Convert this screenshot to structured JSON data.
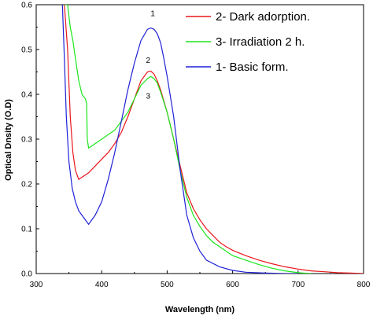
{
  "chart_data": {
    "type": "line",
    "xlabel": "Wavelength (nm)",
    "ylabel": "Optical Dnsity (O.D)",
    "xlim": [
      300,
      800
    ],
    "ylim": [
      0.0,
      0.6
    ],
    "xticks": [
      300,
      400,
      500,
      600,
      700,
      800
    ],
    "yticks": [
      0.0,
      0.1,
      0.2,
      0.3,
      0.4,
      0.5,
      0.6
    ],
    "legend_position": "top-right",
    "colors": {
      "axis": "#000000",
      "red": "#e8161b",
      "green": "#1ce51c",
      "blue": "#1f22d6"
    },
    "series": [
      {
        "name": "2- Dark adorption.",
        "color": "#e8161b",
        "label": "2",
        "x": [
          343,
          348,
          352,
          356,
          360,
          365,
          370,
          375,
          380,
          390,
          400,
          410,
          420,
          430,
          440,
          450,
          460,
          470,
          475,
          480,
          485,
          490,
          500,
          510,
          520,
          530,
          540,
          550,
          560,
          570,
          580,
          590,
          600,
          620,
          640,
          660,
          680,
          700,
          720,
          740,
          760,
          780,
          800
        ],
        "y": [
          0.6,
          0.5,
          0.35,
          0.27,
          0.23,
          0.21,
          0.215,
          0.22,
          0.225,
          0.24,
          0.255,
          0.27,
          0.29,
          0.315,
          0.35,
          0.39,
          0.43,
          0.45,
          0.452,
          0.445,
          0.43,
          0.41,
          0.36,
          0.3,
          0.24,
          0.18,
          0.145,
          0.12,
          0.1,
          0.085,
          0.07,
          0.06,
          0.052,
          0.04,
          0.03,
          0.022,
          0.015,
          0.01,
          0.006,
          0.004,
          0.002,
          0.001,
          0.0
        ]
      },
      {
        "name": "3- Irradiation 2 h.",
        "color": "#1ce51c",
        "label": "3",
        "x": [
          343,
          348,
          352,
          356,
          360,
          365,
          370,
          375,
          377,
          378,
          380,
          385,
          390,
          400,
          410,
          420,
          430,
          440,
          450,
          460,
          470,
          475,
          480,
          485,
          490,
          500,
          510,
          520,
          530,
          540,
          550,
          560,
          570,
          580,
          590,
          600,
          620,
          640,
          660,
          680,
          700,
          720
        ],
        "y": [
          0.6,
          0.6,
          0.55,
          0.52,
          0.48,
          0.43,
          0.4,
          0.39,
          0.38,
          0.3,
          0.28,
          0.285,
          0.29,
          0.3,
          0.31,
          0.32,
          0.34,
          0.36,
          0.39,
          0.42,
          0.435,
          0.44,
          0.435,
          0.425,
          0.405,
          0.36,
          0.3,
          0.23,
          0.17,
          0.13,
          0.105,
          0.085,
          0.07,
          0.06,
          0.05,
          0.04,
          0.03,
          0.02,
          0.012,
          0.006,
          0.002,
          0.0
        ]
      },
      {
        "name": "1- Basic form.",
        "color": "#1f22d6",
        "label": "1",
        "x": [
          340,
          343,
          346,
          350,
          355,
          360,
          365,
          370,
          375,
          380,
          385,
          390,
          400,
          410,
          420,
          430,
          440,
          450,
          460,
          470,
          475,
          480,
          485,
          490,
          495,
          500,
          510,
          520,
          530,
          540,
          550,
          560,
          580,
          600,
          620,
          650,
          680,
          700
        ],
        "y": [
          0.6,
          0.48,
          0.35,
          0.25,
          0.19,
          0.16,
          0.14,
          0.13,
          0.12,
          0.11,
          0.12,
          0.13,
          0.16,
          0.21,
          0.27,
          0.34,
          0.41,
          0.47,
          0.52,
          0.545,
          0.548,
          0.545,
          0.535,
          0.515,
          0.48,
          0.44,
          0.35,
          0.23,
          0.13,
          0.08,
          0.05,
          0.03,
          0.015,
          0.007,
          0.003,
          0.001,
          0.0,
          0.0
        ]
      }
    ]
  }
}
